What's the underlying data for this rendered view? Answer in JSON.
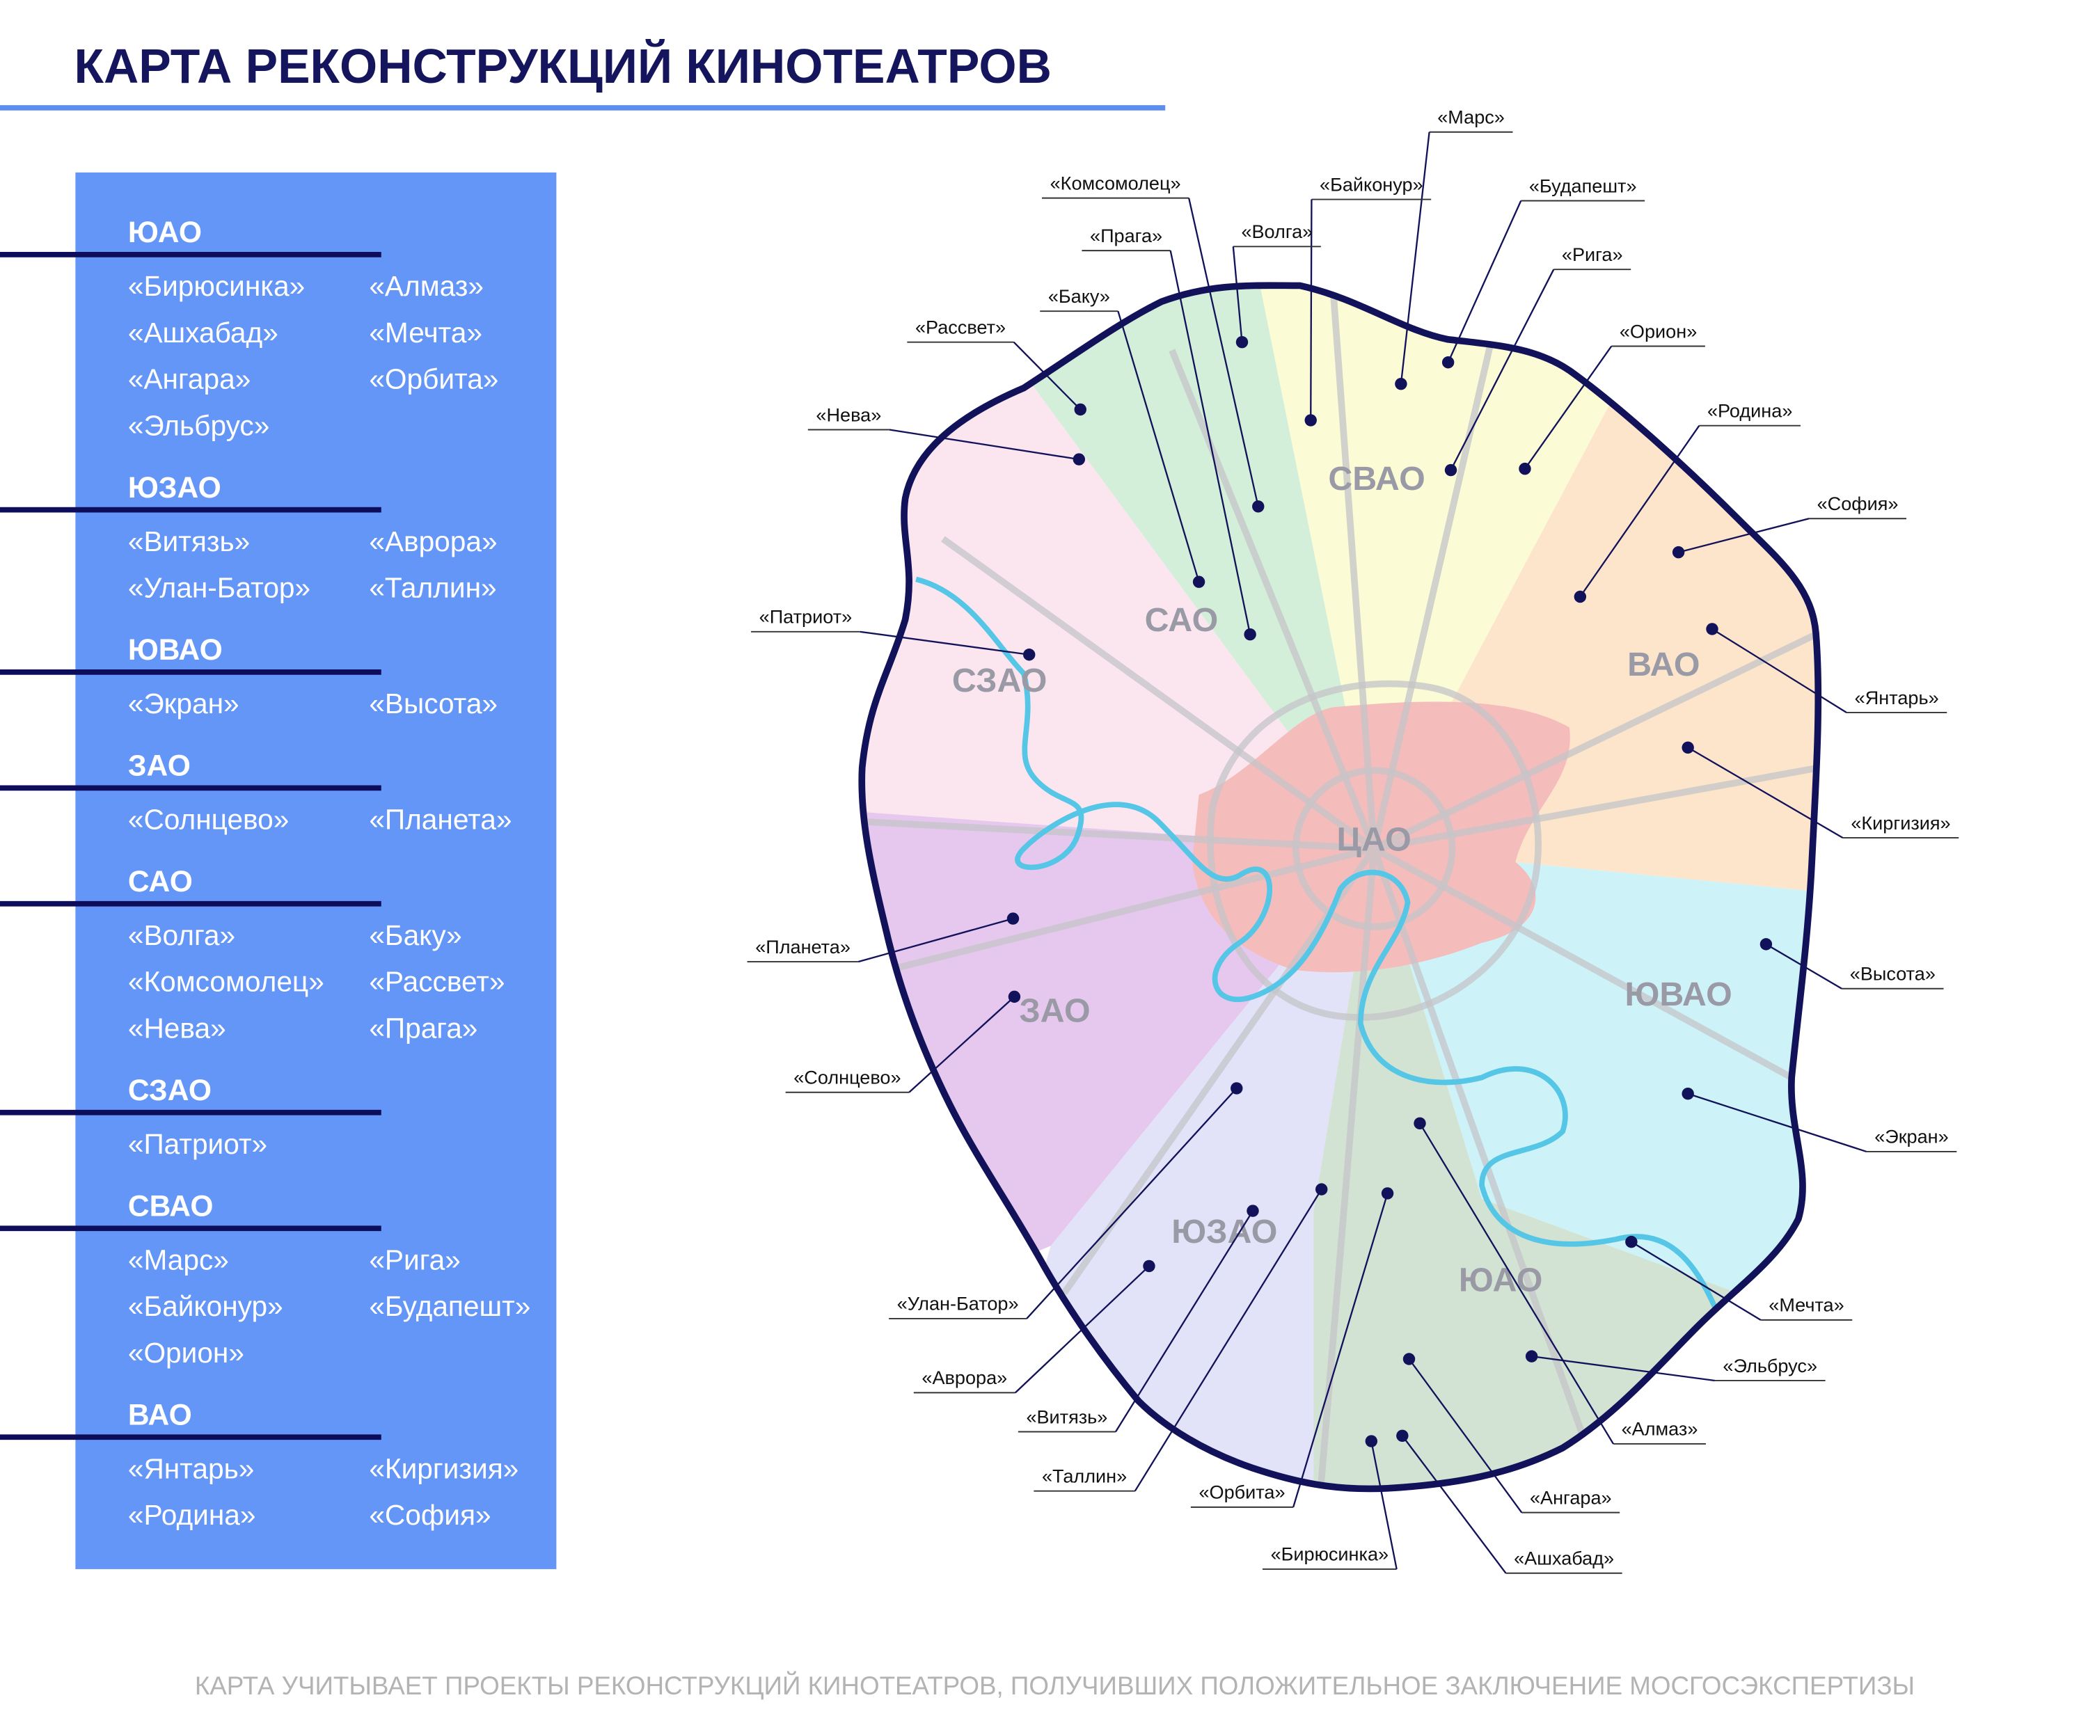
{
  "title": "КАРТА РЕКОНСТРУКЦИЙ КИНОТЕАТРОВ",
  "footnote": "КАРТА УЧИТЫВАЕТ ПРОЕКТЫ РЕКОНСТРУКЦИЙ КИНОТЕАТРОВ, ПОЛУЧИВШИХ ПОЛОЖИТЕЛЬНОЕ ЗАКЛЮЧЕНИЕ МОСГОСЭКСПЕРТИЗЫ",
  "legend": [
    {
      "district": "ЮАО",
      "cinemas": [
        "«Бирюсинка»",
        "«Алмаз»",
        "«Ашхабад»",
        "«Мечта»",
        "«Ангара»",
        "«Орбита»",
        "«Эльбрус»"
      ]
    },
    {
      "district": "ЮЗАО",
      "cinemas": [
        "«Витязь»",
        "«Аврора»",
        "«Улан-Батор»",
        "«Таллин»"
      ]
    },
    {
      "district": "ЮВАО",
      "cinemas": [
        "«Экран»",
        "«Высота»"
      ]
    },
    {
      "district": "ЗАО",
      "cinemas": [
        "«Солнцево»",
        "«Планета»"
      ]
    },
    {
      "district": "САО",
      "cinemas": [
        "«Волга»",
        "«Баку»",
        "«Комсомолец»",
        "«Рассвет»",
        "«Нева»",
        "«Прага»"
      ]
    },
    {
      "district": "СЗАО",
      "cinemas": [
        "«Патриот»"
      ]
    },
    {
      "district": "СВАО",
      "cinemas": [
        "«Марс»",
        "«Рига»",
        "«Байконур»",
        "«Будапешт»",
        "«Орион»"
      ]
    },
    {
      "district": "ВАО",
      "cinemas": [
        "«Янтарь»",
        "«Киргизия»",
        "«Родина»",
        "«София»"
      ]
    }
  ],
  "map": {
    "districts": [
      "СВАО",
      "САО",
      "СЗАО",
      "ВАО",
      "ЦАО",
      "ЗАО",
      "ЮВАО",
      "ЮЗАО",
      "ЮАО"
    ],
    "cinemas": [
      "«Марс»",
      "«Байконур»",
      "«Будапешт»",
      "«Рига»",
      "«Орион»",
      "«Родина»",
      "«София»",
      "«Янтарь»",
      "«Киргизия»",
      "«Высота»",
      "«Экран»",
      "«Мечта»",
      "«Эльбрус»",
      "«Алмаз»",
      "«Ангара»",
      "«Ашхабад»",
      "«Бирюсинка»",
      "«Орбита»",
      "«Таллин»",
      "«Витязь»",
      "«Аврора»",
      "«Улан-Батор»",
      "«Солнцево»",
      "«Планета»",
      "«Патриот»",
      "«Нева»",
      "«Рассвет»",
      "«Баку»",
      "«Прага»",
      "«Комсомолец»",
      "«Волга»"
    ]
  }
}
